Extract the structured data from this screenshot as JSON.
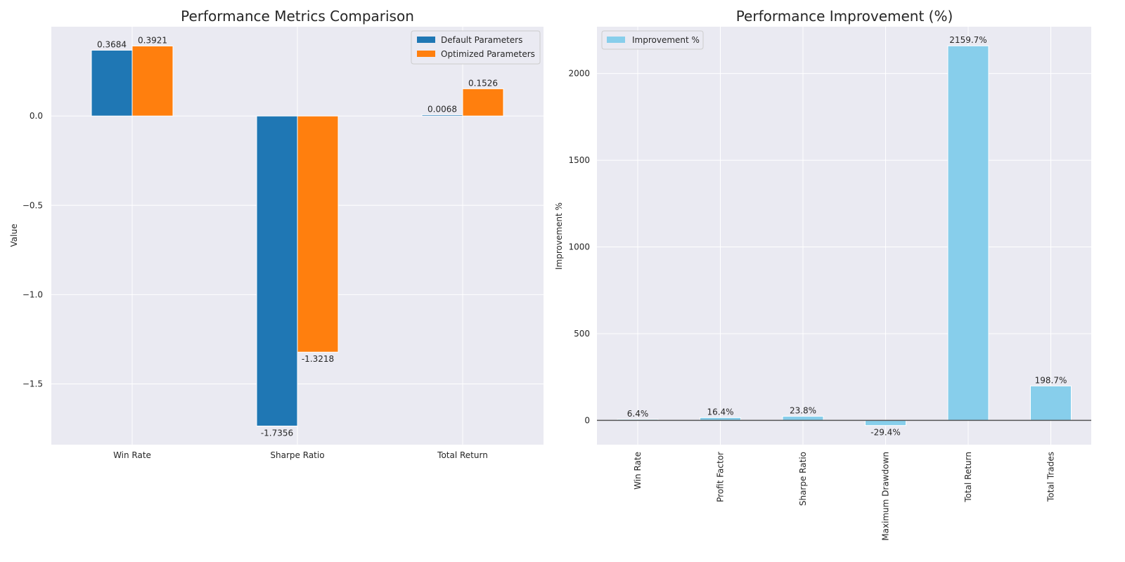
{
  "chart_data": [
    {
      "type": "bar",
      "title": "Performance Metrics Comparison",
      "xlabel": "",
      "ylabel": "Value",
      "categories": [
        "Win Rate",
        "Sharpe Ratio",
        "Total Return"
      ],
      "series": [
        {
          "name": "Default Parameters",
          "color": "#1f77b4",
          "values": [
            0.3684,
            -1.7356,
            0.0068
          ],
          "labels": [
            "0.3684",
            "-1.7356",
            "0.0068"
          ]
        },
        {
          "name": "Optimized Parameters",
          "color": "#ff7f0e",
          "values": [
            0.3921,
            -1.3218,
            0.1526
          ],
          "labels": [
            "0.3921",
            "-1.3218",
            "0.1526"
          ]
        }
      ],
      "ylim": [
        -1.84,
        0.5
      ],
      "yticks": [
        0.0,
        -0.5,
        -1.0,
        -1.5
      ],
      "ytick_labels": [
        "0.0",
        "−0.5",
        "−1.0",
        "−1.5"
      ],
      "grid": true,
      "legend": "top-right"
    },
    {
      "type": "bar",
      "title": "Performance Improvement (%)",
      "xlabel": "",
      "ylabel": "Improvement %",
      "categories": [
        "Win Rate",
        "Profit Factor",
        "Sharpe Ratio",
        "Maximum Drawdown",
        "Total Return",
        "Total Trades"
      ],
      "series": [
        {
          "name": "Improvement %",
          "color": "#87ceeb",
          "values": [
            6.4,
            16.4,
            23.8,
            -29.4,
            2159.7,
            198.7
          ],
          "labels": [
            "6.4%",
            "16.4%",
            "23.8%",
            "-29.4%",
            "2159.7%",
            "198.7%"
          ]
        }
      ],
      "ylim": [
        -140,
        2270
      ],
      "yticks": [
        0,
        500,
        1000,
        1500,
        2000
      ],
      "ytick_labels": [
        "0",
        "500",
        "1000",
        "1500",
        "2000"
      ],
      "xtick_rotation": 90,
      "zero_line": true,
      "grid": true,
      "legend": "top-left"
    }
  ]
}
